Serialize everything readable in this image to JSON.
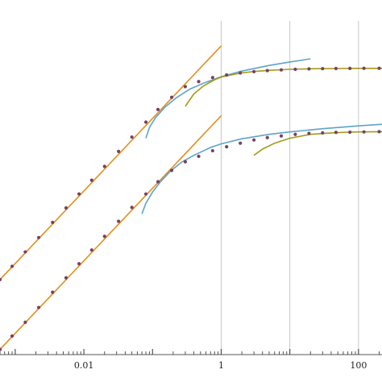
{
  "chart_data": {
    "type": "line",
    "title": "",
    "xlabel": "",
    "ylabel": "",
    "x_scale": "log",
    "y_scale": "log",
    "xlim": [
      0.0006,
      220
    ],
    "ylim": [
      0.0007,
      40
    ],
    "x_ticks": [
      {
        "value": 0.01,
        "label": "0.01"
      },
      {
        "value": 1,
        "label": "1"
      },
      {
        "value": 100,
        "label": "100"
      }
    ],
    "vertical_gridlines": [
      1,
      10,
      100
    ],
    "series": [
      {
        "kind": "fit",
        "color": "#e28f1b",
        "x": [
          0.0006,
          1
        ],
        "y": [
          0.0071,
          9.7
        ]
      },
      {
        "kind": "fit",
        "color": "#e28f1b",
        "x": [
          0.0006,
          1
        ],
        "y": [
          0.00082,
          1.12
        ]
      },
      {
        "kind": "fit",
        "color": "#5ea3c9",
        "x": [
          0.08,
          0.09,
          0.11,
          0.15,
          0.22,
          0.35,
          0.55,
          1,
          2,
          5,
          10,
          20
        ],
        "y": [
          0.56,
          0.78,
          1.05,
          1.45,
          1.94,
          2.55,
          3.06,
          3.75,
          4.45,
          5.3,
          5.9,
          6.5
        ]
      },
      {
        "kind": "fit",
        "color": "#a39a17",
        "x": [
          0.3,
          0.4,
          0.55,
          0.8,
          1,
          1.5,
          2,
          3,
          5,
          10,
          20,
          50,
          100,
          220
        ],
        "y": [
          1.5,
          2.2,
          2.8,
          3.4,
          3.7,
          4.0,
          4.2,
          4.4,
          4.55,
          4.7,
          4.78,
          4.82,
          4.84,
          4.85
        ]
      },
      {
        "kind": "fit",
        "color": "#5ea3c9",
        "x": [
          0.07,
          0.08,
          0.1,
          0.13,
          0.18,
          0.27,
          0.4,
          0.7,
          1,
          2,
          5,
          10,
          30,
          100,
          220
        ],
        "y": [
          0.054,
          0.075,
          0.106,
          0.145,
          0.2,
          0.27,
          0.33,
          0.42,
          0.47,
          0.55,
          0.63,
          0.68,
          0.75,
          0.82,
          0.86
        ]
      },
      {
        "kind": "fit",
        "color": "#a39a17",
        "x": [
          3,
          4,
          6,
          10,
          20,
          40,
          70,
          100,
          220
        ],
        "y": [
          0.33,
          0.4,
          0.48,
          0.56,
          0.63,
          0.66,
          0.675,
          0.68,
          0.685
        ]
      },
      {
        "kind": "data",
        "color": "#7a3f63",
        "x": [
          0.0006,
          0.0009,
          0.0014,
          0.0022,
          0.0035,
          0.0055,
          0.0085,
          0.013,
          0.02,
          0.032,
          0.05,
          0.08,
          0.12,
          0.19,
          0.3,
          0.47,
          0.75,
          1.2,
          1.9,
          3,
          4.7,
          7.5,
          12,
          19,
          30,
          47,
          75,
          120,
          200
        ],
        "y": [
          0.0071,
          0.0107,
          0.0167,
          0.026,
          0.0415,
          0.065,
          0.1,
          0.153,
          0.234,
          0.372,
          0.58,
          0.92,
          1.36,
          1.98,
          2.75,
          3.22,
          3.65,
          3.95,
          4.2,
          4.38,
          4.52,
          4.62,
          4.7,
          4.76,
          4.8,
          4.82,
          4.84,
          4.85,
          4.85
        ]
      },
      {
        "kind": "data",
        "color": "#7a3f63",
        "x": [
          0.0006,
          0.0009,
          0.0014,
          0.0022,
          0.0035,
          0.0055,
          0.0085,
          0.013,
          0.02,
          0.032,
          0.05,
          0.08,
          0.12,
          0.19,
          0.3,
          0.47,
          0.75,
          1.2,
          1.9,
          3,
          4.7,
          7.5,
          12,
          19,
          30,
          47,
          75,
          120,
          200
        ],
        "y": [
          0.00082,
          0.00124,
          0.0019,
          0.003,
          0.0048,
          0.0075,
          0.0116,
          0.0177,
          0.027,
          0.043,
          0.066,
          0.1,
          0.146,
          0.207,
          0.27,
          0.32,
          0.38,
          0.43,
          0.48,
          0.53,
          0.57,
          0.6,
          0.63,
          0.65,
          0.66,
          0.67,
          0.675,
          0.68,
          0.685
        ]
      }
    ]
  }
}
